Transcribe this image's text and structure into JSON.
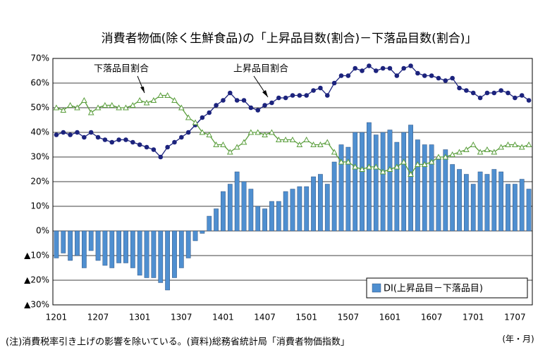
{
  "chart_data": {
    "type": "bar",
    "title": "消費者物価(除く生鮮食品)の「上昇品目数(割合)－下落品目数(割合)」",
    "note": "(注)消費税率引き上げの影響を除いている。(資料)総務省統計局「消費者物価指数」",
    "x_label": "(年・月)",
    "categories": [
      "1201",
      null,
      null,
      null,
      null,
      null,
      "1207",
      null,
      null,
      null,
      null,
      null,
      "1301",
      null,
      null,
      null,
      null,
      null,
      "1307",
      null,
      null,
      null,
      null,
      null,
      "1401",
      null,
      null,
      null,
      null,
      null,
      "1407",
      null,
      null,
      null,
      null,
      null,
      "1501",
      null,
      null,
      null,
      null,
      null,
      "1507",
      null,
      null,
      null,
      null,
      null,
      "1601",
      null,
      null,
      null,
      null,
      null,
      "1607",
      null,
      null,
      null,
      null,
      null,
      "1701",
      null,
      null,
      null,
      null,
      null,
      "1707",
      null,
      null
    ],
    "ylim": [
      -30,
      70
    ],
    "yticks": [
      {
        "value": -30,
        "label": "▲30%"
      },
      {
        "value": -20,
        "label": "▲20%"
      },
      {
        "value": -10,
        "label": "▲10%"
      },
      {
        "value": 0,
        "label": "0%"
      },
      {
        "value": 10,
        "label": "10%"
      },
      {
        "value": 20,
        "label": "20%"
      },
      {
        "value": 30,
        "label": "30%"
      },
      {
        "value": 40,
        "label": "40%"
      },
      {
        "value": 50,
        "label": "50%"
      },
      {
        "value": 60,
        "label": "60%"
      },
      {
        "value": 70,
        "label": "70%"
      }
    ],
    "grid": true,
    "legend": "lower right",
    "series": [
      {
        "name": "DI(上昇品目－下落品目)",
        "type": "bar",
        "color": "#4f8fd0",
        "values": [
          -11,
          -9,
          -12,
          -10,
          -15,
          -8,
          -12,
          -14,
          -15,
          -13,
          -13,
          -15,
          -18,
          -19,
          -19,
          -21,
          -24,
          -19,
          -15,
          -11,
          -4,
          -1,
          6,
          9,
          16,
          19,
          24,
          20,
          17,
          10,
          9,
          12,
          12,
          16,
          17,
          18,
          18,
          22,
          23,
          19,
          28,
          35,
          34,
          40,
          40,
          44,
          39,
          40,
          41,
          36,
          40,
          43,
          37,
          35,
          35,
          29,
          33,
          27,
          25,
          23,
          19,
          24,
          23,
          25,
          24,
          19,
          19,
          21,
          17
        ]
      },
      {
        "name": "上昇品目割合",
        "type": "line",
        "marker": "circle",
        "color": "#1c237d",
        "values": [
          39,
          40,
          39,
          40,
          38,
          40,
          38,
          37,
          36,
          37,
          37,
          36,
          35,
          34,
          33,
          30,
          34,
          36,
          38,
          40,
          43,
          46,
          48,
          51,
          53,
          56,
          53,
          53,
          50,
          49,
          51,
          52,
          54,
          54,
          55,
          55,
          55,
          57,
          58,
          55,
          60,
          63,
          63,
          66,
          65,
          67,
          65,
          66,
          66,
          63,
          66,
          67,
          64,
          63,
          63,
          62,
          61,
          62,
          58,
          57,
          56,
          54,
          56,
          56,
          57,
          56,
          54,
          55,
          53
        ]
      },
      {
        "name": "下落品目割合",
        "type": "line",
        "marker": "triangle",
        "color": "#5a9e3c",
        "values": [
          50,
          49,
          51,
          50,
          53,
          48,
          50,
          51,
          51,
          50,
          50,
          51,
          53,
          52,
          53,
          55,
          55,
          53,
          50,
          46,
          44,
          40,
          39,
          35,
          35,
          32,
          34,
          36,
          40,
          40,
          39,
          40,
          37,
          37,
          37,
          35,
          37,
          35,
          35,
          36,
          32,
          28,
          28,
          26,
          25,
          26,
          26,
          24,
          25,
          26,
          28,
          23,
          27,
          27,
          28,
          30,
          30,
          31,
          32,
          33,
          35,
          32,
          33,
          32,
          34,
          35,
          35,
          34,
          35
        ]
      }
    ]
  }
}
